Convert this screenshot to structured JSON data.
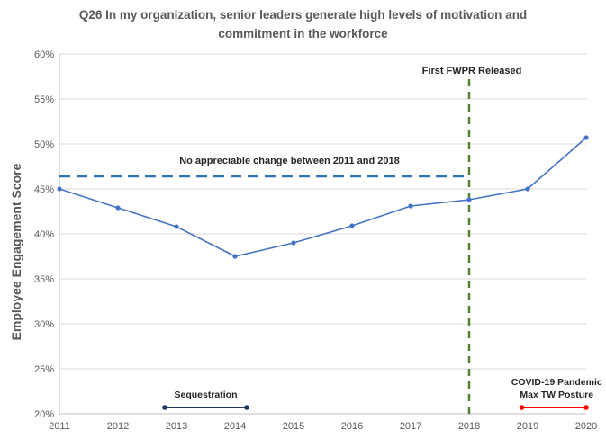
{
  "chart_data": {
    "type": "line",
    "title_lines": [
      "Q26 In my organization,  senior leaders generate high levels of motivation  and",
      "commitment  in the workforce"
    ],
    "xlabel": "",
    "ylabel": "Employee Engagement Score",
    "categories": [
      "2011",
      "2012",
      "2013",
      "2014",
      "2015",
      "2016",
      "2017",
      "2018",
      "2019",
      "2020"
    ],
    "series": [
      {
        "values": [
          45.0,
          42.9,
          40.8,
          37.5,
          39.0,
          40.9,
          43.1,
          43.8,
          45.0,
          50.7
        ],
        "color": "#4472C4"
      }
    ],
    "ylim": [
      20,
      60
    ],
    "yticks": [
      20,
      25,
      30,
      35,
      40,
      45,
      50,
      55,
      60
    ],
    "ytick_labels": [
      "20%",
      "25%",
      "30%",
      "35%",
      "40%",
      "45%",
      "50%",
      "55%",
      "60%"
    ],
    "grid": "horizontal",
    "annotations": {
      "reference_line": {
        "label": "No appreciable change between 2011 and 2018",
        "y": 46.4,
        "x_start": 2011,
        "x_end": 2018,
        "color": "#2E75B6"
      },
      "event_line": {
        "label": "First FWPR Released",
        "x": 2018,
        "color": "#548235"
      },
      "ranges": [
        {
          "label_lines": [
            "Sequestration"
          ],
          "x_start": 2012.8,
          "x_end": 2014.2,
          "color": "#1F3864"
        },
        {
          "label_lines": [
            "COVID-19 Pandemic",
            "Max TW Posture"
          ],
          "x_start": 2018.9,
          "x_end": 2020.0,
          "color": "#FF0000"
        }
      ]
    }
  }
}
